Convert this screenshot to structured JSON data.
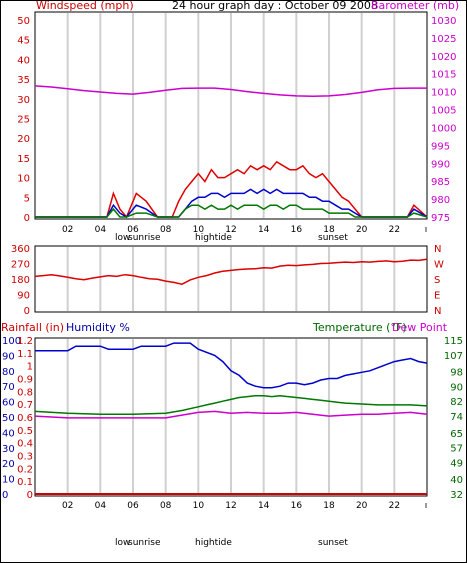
{
  "header": {
    "left": "Windspeed (mph)",
    "center": "24 hour graph day : October 09 2008",
    "right": "Barometer (mb)"
  },
  "colors": {
    "wind": "#e00000",
    "gust": "#e00000",
    "barometer": "#cc00cc",
    "direction": "#dd0000",
    "blue": "#0000cc",
    "green": "#007700",
    "grid": "#d0d0d0",
    "axis_left": "#cc0000",
    "axis_right": "#cc00cc",
    "axis_humidity": "#0000aa",
    "axis_temp": "#006600"
  },
  "x_ticks": [
    "02",
    "04",
    "06",
    "08",
    "10",
    "12",
    "14",
    "16",
    "18",
    "20",
    "22"
  ],
  "events": {
    "low": "low",
    "sunrise": "sunrise",
    "hightide": "hightide",
    "sunset": "sunset"
  },
  "panel3_headers": {
    "rainfall": "Rainfall (in)",
    "humidity": "Humidity %",
    "temperature": "Temperature (°F)",
    "dewpoint": "Dew Point"
  },
  "chart_data": [
    {
      "type": "line",
      "title": "24 hour graph day : October 09 2008",
      "xlabel": "",
      "ylabel": "Windspeed (mph)",
      "y2label": "Barometer (mb)",
      "x_ticks": [
        "02",
        "04",
        "06",
        "08",
        "10",
        "12",
        "14",
        "16",
        "18",
        "20",
        "22"
      ],
      "y_ticks": [
        "0",
        "5",
        "10",
        "15",
        "20",
        "25",
        "30",
        "35",
        "40",
        "45",
        "50"
      ],
      "y2_ticks": [
        "975",
        "980",
        "985",
        "990",
        "995",
        "1000",
        "1005",
        "1010",
        "1015",
        "1020",
        "1025",
        "1030"
      ],
      "ylim": [
        0,
        50
      ],
      "y2lim": [
        975,
        1030
      ],
      "series": [
        {
          "name": "Barometer (mb)",
          "axis": "right",
          "x": [
            0,
            1,
            2,
            3,
            4,
            5,
            6,
            7,
            8,
            9,
            10,
            11,
            12,
            13,
            14,
            15,
            16,
            17,
            18,
            19,
            20,
            21,
            22,
            23,
            24
          ],
          "values": [
            1011.6,
            1011.3,
            1010.8,
            1010.3,
            1009.9,
            1009.5,
            1009.3,
            1009.8,
            1010.4,
            1010.9,
            1011.0,
            1011.0,
            1010.6,
            1010.0,
            1009.5,
            1009.1,
            1008.8,
            1008.7,
            1008.8,
            1009.2,
            1009.8,
            1010.5,
            1010.9,
            1011.0,
            1011.0
          ]
        },
        {
          "axis": "left",
          "x": [
            0,
            4.4,
            4.8,
            5.2,
            5.6,
            6.2,
            6.8,
            7.5,
            7.8,
            8.4,
            8.8,
            9.2,
            9.6,
            10,
            10.4,
            10.8,
            11.2,
            11.6,
            12,
            12.4,
            12.8,
            13.2,
            13.6,
            14,
            14.4,
            14.8,
            15.2,
            15.6,
            16,
            16.4,
            16.8,
            17.2,
            17.6,
            18,
            18.4,
            18.8,
            19.2,
            19.6,
            20,
            22.8,
            23.2,
            24
          ],
          "values": [
            0,
            0,
            6,
            2,
            0,
            6,
            4,
            0,
            0,
            0,
            4,
            7,
            9,
            11,
            9,
            12,
            10,
            10,
            11,
            12,
            11,
            13,
            12,
            13,
            12,
            14,
            13,
            12,
            12,
            13,
            11,
            10,
            11,
            9,
            7,
            5,
            4,
            2,
            0,
            0,
            3,
            0
          ]
        },
        {
          "axis": "left",
          "x": [
            0,
            4.4,
            4.8,
            5.2,
            5.6,
            6.2,
            6.8,
            7.5,
            8.8,
            9.2,
            9.6,
            10,
            10.4,
            10.8,
            11.2,
            11.6,
            12,
            12.4,
            12.8,
            13.2,
            13.6,
            14,
            14.4,
            14.8,
            15.2,
            15.6,
            16,
            16.4,
            16.8,
            17.2,
            17.6,
            18,
            18.4,
            18.8,
            19.2,
            19.6,
            20,
            22.8,
            23.2,
            24
          ],
          "values": [
            0,
            0,
            3,
            1,
            0,
            3,
            2,
            0,
            0,
            2,
            4,
            5,
            5,
            6,
            6,
            5,
            6,
            6,
            6,
            7,
            6,
            7,
            6,
            7,
            6,
            6,
            6,
            6,
            5,
            5,
            4,
            4,
            3,
            2,
            2,
            1,
            0,
            0,
            2,
            0
          ]
        },
        {
          "axis": "left",
          "x": [
            0,
            4.4,
            4.8,
            5.2,
            5.6,
            6.2,
            6.8,
            7.5,
            8.8,
            9.2,
            9.6,
            10,
            10.4,
            10.8,
            11.2,
            11.6,
            12,
            12.4,
            12.8,
            13.2,
            13.6,
            14,
            14.4,
            14.8,
            15.2,
            15.6,
            16,
            16.4,
            16.8,
            17.2,
            17.6,
            18,
            18.4,
            18.8,
            19.2,
            19.6,
            20,
            22.8,
            23.2,
            24
          ],
          "values": [
            0,
            0,
            2,
            0,
            0,
            1,
            1,
            0,
            0,
            2,
            3,
            3,
            2,
            3,
            2,
            2,
            3,
            2,
            3,
            3,
            3,
            2,
            3,
            3,
            2,
            3,
            3,
            2,
            2,
            2,
            2,
            1,
            1,
            1,
            1,
            0,
            0,
            0,
            1,
            0
          ]
        }
      ]
    },
    {
      "type": "line",
      "ylabel": "",
      "y_ticks": [
        "360",
        "270",
        "180",
        "90",
        "0"
      ],
      "y2_ticks": [
        "N",
        "W",
        "S",
        "E",
        "N"
      ],
      "ylim": [
        0,
        360
      ],
      "x_ticks": [
        "02",
        "04",
        "06",
        "08",
        "10",
        "12",
        "14",
        "16",
        "18",
        "20",
        "22"
      ],
      "series": [
        {
          "axis": "left",
          "x": [
            0,
            0.5,
            1,
            1.5,
            2,
            2.5,
            3,
            3.5,
            4,
            4.5,
            5,
            5.5,
            6,
            6.5,
            7,
            7.5,
            8,
            8.5,
            9,
            9.5,
            10,
            10.5,
            11,
            11.5,
            12,
            12.5,
            13,
            13.5,
            14,
            14.5,
            15,
            15.5,
            16,
            16.5,
            17,
            17.5,
            18,
            18.5,
            19,
            19.5,
            20,
            20.5,
            21,
            21.5,
            22,
            22.5,
            23,
            23.5,
            24
          ],
          "values": [
            195,
            200,
            205,
            198,
            190,
            182,
            176,
            185,
            192,
            200,
            195,
            205,
            200,
            190,
            182,
            178,
            168,
            160,
            150,
            175,
            190,
            200,
            215,
            225,
            230,
            235,
            238,
            240,
            245,
            243,
            255,
            260,
            258,
            262,
            265,
            270,
            272,
            275,
            278,
            276,
            280,
            278,
            282,
            285,
            280,
            283,
            290,
            288,
            295
          ]
        }
      ]
    },
    {
      "type": "line",
      "x_ticks": [
        "02",
        "04",
        "06",
        "08",
        "10",
        "12",
        "14",
        "16",
        "18",
        "20",
        "22"
      ],
      "y_ticks_rainfall": [
        "1.2",
        "1.1",
        "1",
        "0.9",
        "0.8",
        "0.7",
        "0.6",
        "0.5",
        "0.4",
        "0.3",
        "0.2",
        "0.1",
        "0"
      ],
      "y_ticks_humidity": [
        "100",
        "90",
        "80",
        "70",
        "60",
        "50",
        "40",
        "30",
        "20",
        "10",
        "0"
      ],
      "y2_ticks": [
        "115",
        "107",
        "98",
        "90",
        "82",
        "74",
        "65",
        "57",
        "49",
        "40",
        "32"
      ],
      "ylim": [
        0,
        100
      ],
      "y2lim": [
        32,
        115
      ],
      "series": [
        {
          "name": "Humidity %",
          "axis": "humidity",
          "x": [
            0,
            2,
            2.5,
            4,
            4.5,
            6,
            6.5,
            8,
            8.5,
            9.5,
            10,
            11,
            11.5,
            12,
            12.5,
            13,
            13.5,
            14,
            14.5,
            15,
            15.5,
            16,
            16.5,
            17,
            17.5,
            18,
            18.5,
            19,
            19.5,
            20,
            20.5,
            21,
            21.5,
            22,
            22.5,
            23,
            23.5,
            24
          ],
          "values": [
            93,
            93,
            96,
            96,
            94,
            94,
            96,
            96,
            98,
            98,
            94,
            90,
            86,
            80,
            77,
            72,
            70,
            69,
            69,
            70,
            72,
            72,
            71,
            72,
            74,
            75,
            75,
            77,
            78,
            79,
            80,
            82,
            84,
            86,
            87,
            88,
            86,
            85
          ]
        },
        {
          "name": "Temperature (°F)",
          "axis": "temp",
          "x": [
            0,
            2,
            4,
            6,
            8,
            9,
            10,
            10.5,
            11,
            11.5,
            12,
            12.5,
            13,
            13.5,
            14,
            14.5,
            15,
            15.5,
            16,
            16.5,
            17,
            17.5,
            18,
            18.5,
            19,
            20,
            21,
            22,
            23,
            24
          ],
          "values": [
            76.5,
            75.5,
            75,
            75,
            75.5,
            77,
            79,
            80,
            81,
            82,
            83,
            84,
            84.5,
            85,
            85,
            84.5,
            85,
            84.5,
            84,
            83.5,
            83,
            82.5,
            82,
            81.5,
            81,
            80.5,
            80,
            80,
            80,
            79.5
          ]
        },
        {
          "name": "Dew Point",
          "axis": "temp",
          "x": [
            0,
            1,
            2,
            3,
            4,
            5,
            6,
            7,
            8,
            9,
            10,
            11,
            12,
            13,
            14,
            15,
            16,
            17,
            18,
            19,
            20,
            21,
            22,
            23,
            24
          ],
          "values": [
            74,
            73.5,
            73,
            73,
            73,
            73,
            73,
            73,
            73,
            74.5,
            76,
            76.5,
            75.5,
            76,
            75.5,
            75.5,
            76,
            75,
            74,
            74.5,
            75,
            75,
            75.5,
            76,
            75
          ]
        },
        {
          "name": "Rainfall (in)",
          "axis": "rainfall",
          "x": [
            0,
            24
          ],
          "values": [
            0,
            0
          ]
        }
      ]
    }
  ]
}
